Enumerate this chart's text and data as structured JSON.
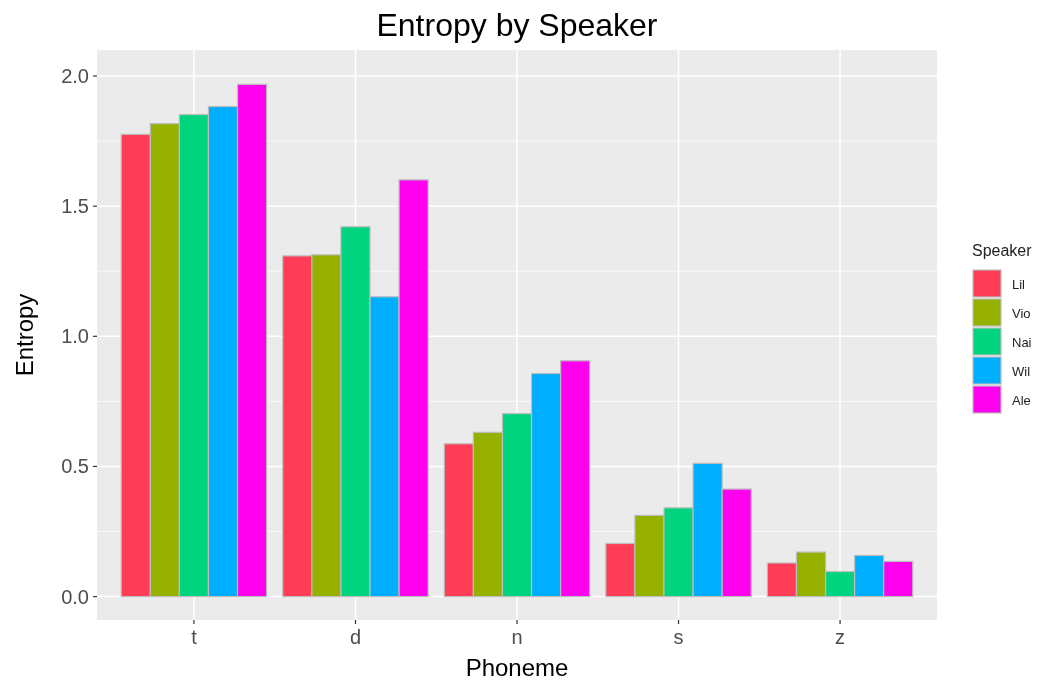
{
  "chart_data": {
    "type": "bar",
    "title": "Entropy by Speaker",
    "xlabel": "Phoneme",
    "ylabel": "Entropy",
    "legend_title": "Speaker",
    "categories": [
      "t",
      "d",
      "n",
      "s",
      "z"
    ],
    "series": [
      {
        "name": "Lil",
        "color": "#ff3d56",
        "values": [
          1.776,
          1.309,
          0.587,
          0.204,
          0.129
        ]
      },
      {
        "name": "Vio",
        "color": "#96b000",
        "values": [
          1.817,
          1.313,
          0.631,
          0.312,
          0.171
        ]
      },
      {
        "name": "Nai",
        "color": "#00d47f",
        "values": [
          1.852,
          1.421,
          0.703,
          0.341,
          0.096
        ]
      },
      {
        "name": "Wil",
        "color": "#00aeff",
        "values": [
          1.883,
          1.152,
          0.857,
          0.512,
          0.158
        ]
      },
      {
        "name": "Ale",
        "color": "#ff00ee",
        "values": [
          1.968,
          1.601,
          0.906,
          0.413,
          0.135
        ]
      }
    ],
    "ylim": [
      -0.09,
      2.1
    ],
    "yticks": [
      {
        "value": 0,
        "label": "0.0"
      },
      {
        "value": 0.5,
        "label": "0.5"
      },
      {
        "value": 1,
        "label": "1.0"
      },
      {
        "value": 1.5,
        "label": "1.5"
      },
      {
        "value": 2,
        "label": "2.0"
      }
    ],
    "grid": true,
    "legend": "right"
  }
}
